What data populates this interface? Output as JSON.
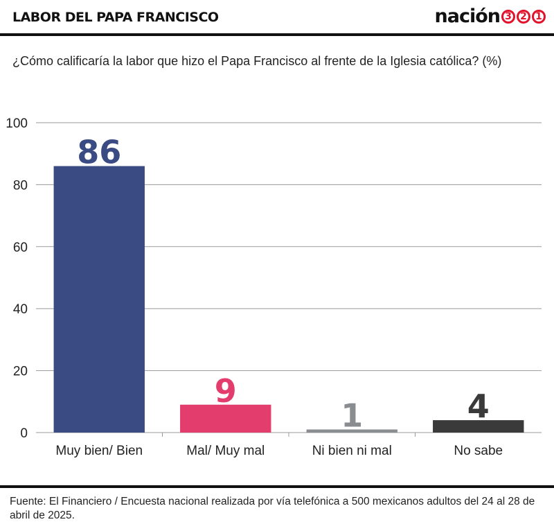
{
  "header": {
    "title": "LABOR DEL PAPA FRANCISCO",
    "brand_name": "nación",
    "brand_digits": [
      "3",
      "2",
      "1"
    ]
  },
  "question": "¿Cómo calificaría la labor que hizo el Papa Francisco al frente de la Iglesia católica? (%)",
  "chart_data": {
    "type": "bar",
    "title": "",
    "xlabel": "",
    "ylabel": "",
    "categories": [
      "Muy bien/ Bien",
      "Mal/ Muy mal",
      "Ni bien ni mal",
      "No sabe"
    ],
    "values": [
      86,
      9,
      1,
      4
    ],
    "data_labels": [
      "86",
      "9",
      "1",
      "4"
    ],
    "colors": [
      "#3a4a82",
      "#e23d6c",
      "#8a8d90",
      "#3a3a3a"
    ],
    "ylim": [
      0,
      100
    ],
    "yticks": [
      0,
      20,
      40,
      60,
      80,
      100
    ],
    "grid": true,
    "legend": "none"
  },
  "colors": {
    "gridline": "#9a9a9a",
    "accent": "#e0122c",
    "text": "#111111"
  },
  "footer": {
    "source": "Fuente: El Financiero / Encuesta nacional realizada por vía telefónica a 500 mexicanos adultos del 24 al 28 de abril de 2025."
  }
}
